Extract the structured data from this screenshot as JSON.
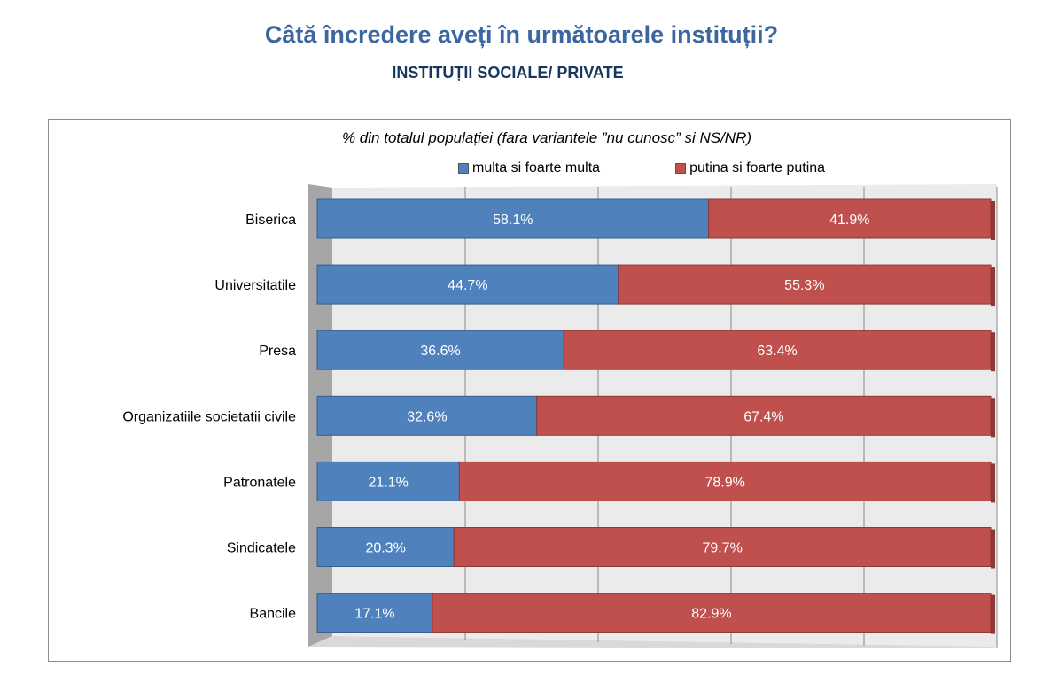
{
  "header": {
    "title": "Câtă încredere aveți în următoarele instituții?",
    "subtitle": "INSTITUȚII SOCIALE/ PRIVATE"
  },
  "chart_data": {
    "type": "bar",
    "orientation": "horizontal",
    "stacked": true,
    "title": "% din totalul populației (fara variantele ”nu cunosc” si NS/NR)",
    "categories": [
      "Biserica",
      "Universitatile",
      "Presa",
      "Organizatiile societatii civile",
      "Patronatele",
      "Sindicatele",
      "Bancile"
    ],
    "series": [
      {
        "name": "multa si foarte multa",
        "color": "#4f81bd",
        "values": [
          58.1,
          44.7,
          36.6,
          32.6,
          21.1,
          20.3,
          17.1
        ],
        "labels": [
          "58.1%",
          "44.7%",
          "36.6%",
          "32.6%",
          "21.1%",
          "20.3%",
          "17.1%"
        ]
      },
      {
        "name": "putina si foarte putina",
        "color": "#c0504d",
        "values": [
          41.9,
          55.3,
          63.4,
          67.4,
          78.9,
          79.7,
          82.9
        ],
        "labels": [
          "41.9%",
          "55.3%",
          "63.4%",
          "67.4%",
          "78.9%",
          "79.7%",
          "82.9%"
        ]
      }
    ],
    "xlim": [
      0,
      100
    ],
    "grid": true,
    "legend": "top"
  }
}
